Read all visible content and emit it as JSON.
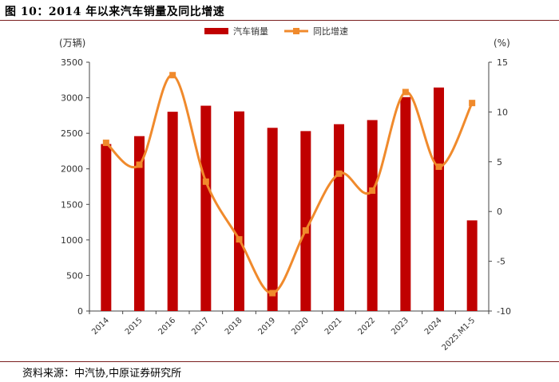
{
  "figure": {
    "title": "图 10：2014 年以来汽车销量及同比增速",
    "source": "资料来源：中汽协,中原证券研究所"
  },
  "chart_data": {
    "type": "bar",
    "categories": [
      "2014",
      "2015",
      "2016",
      "2017",
      "2018",
      "2019",
      "2020",
      "2021",
      "2022",
      "2023",
      "2024",
      "2025.M1-5"
    ],
    "series": [
      {
        "name": "汽车销量",
        "type": "bar",
        "axis": "left",
        "color": "#c00000",
        "values": [
          2349,
          2460,
          2803,
          2888,
          2808,
          2577,
          2531,
          2628,
          2686,
          3009,
          3144,
          1275
        ]
      },
      {
        "name": "同比增速",
        "type": "line",
        "axis": "right",
        "color": "#f08a2c",
        "values": [
          6.9,
          4.7,
          13.7,
          3.0,
          -2.8,
          -8.2,
          -1.9,
          3.8,
          2.1,
          12.0,
          4.5,
          10.9
        ]
      }
    ],
    "left_axis": {
      "unit": "(万辆)",
      "ylim": [
        0,
        3500
      ],
      "ticks": [
        "0",
        "500",
        "1000",
        "1500",
        "2000",
        "2500",
        "3000",
        "3500"
      ]
    },
    "right_axis": {
      "unit": "(%)",
      "ylim": [
        -10,
        15
      ],
      "ticks": [
        "-10",
        "-5",
        "0",
        "5",
        "10",
        "15"
      ]
    },
    "grid": false,
    "legend": "top-center"
  }
}
